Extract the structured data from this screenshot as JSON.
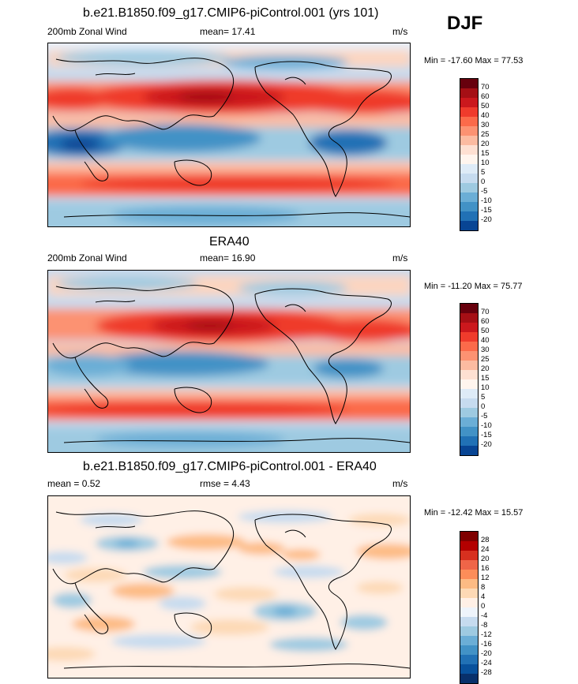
{
  "season": "DJF",
  "panels": [
    {
      "title": "b.e21.B1850.f09_g17.CMIP6-piControl.001 (yrs 101)",
      "left_label": "200mb Zonal Wind",
      "center_label": "mean=  17.41",
      "units": "m/s",
      "minmax": "Min = -17.60 Max = 77.53"
    },
    {
      "title": "ERA40",
      "left_label": "200mb Zonal Wind",
      "center_label": "mean=  16.90",
      "units": "m/s",
      "minmax": "Min = -11.20 Max = 75.77"
    },
    {
      "title": "b.e21.B1850.f09_g17.CMIP6-piControl.001 - ERA40",
      "left_label": "mean =   0.52",
      "center_label": "rmse =   4.43",
      "units": "m/s",
      "minmax": "Min = -12.42 Max = 15.57"
    }
  ],
  "colorbar_abs": {
    "labels": [
      "70",
      "60",
      "50",
      "40",
      "30",
      "25",
      "20",
      "15",
      "10",
      "5",
      "0",
      "-5",
      "-10",
      "-15",
      "-20"
    ],
    "colors": [
      "#67000d",
      "#a50f15",
      "#cb181d",
      "#ef3b2c",
      "#fb6a4a",
      "#fc9272",
      "#fcbba1",
      "#fee0d2",
      "#fff5ee",
      "#deebf7",
      "#c6dbef",
      "#9ecae1",
      "#6baed6",
      "#4292c6",
      "#2171b5",
      "#084594"
    ]
  },
  "colorbar_diff": {
    "labels": [
      "28",
      "24",
      "20",
      "16",
      "12",
      "8",
      "4",
      "0",
      "-4",
      "-8",
      "-12",
      "-16",
      "-20",
      "-24",
      "-28"
    ],
    "colors": [
      "#7f0000",
      "#b30000",
      "#d7301f",
      "#ef6548",
      "#fc8d59",
      "#fdbb84",
      "#fdd9b5",
      "#fff0e6",
      "#eef4fb",
      "#c6dbef",
      "#9ecae1",
      "#6baed6",
      "#4292c6",
      "#2171b5",
      "#08519c",
      "#08306b"
    ]
  }
}
